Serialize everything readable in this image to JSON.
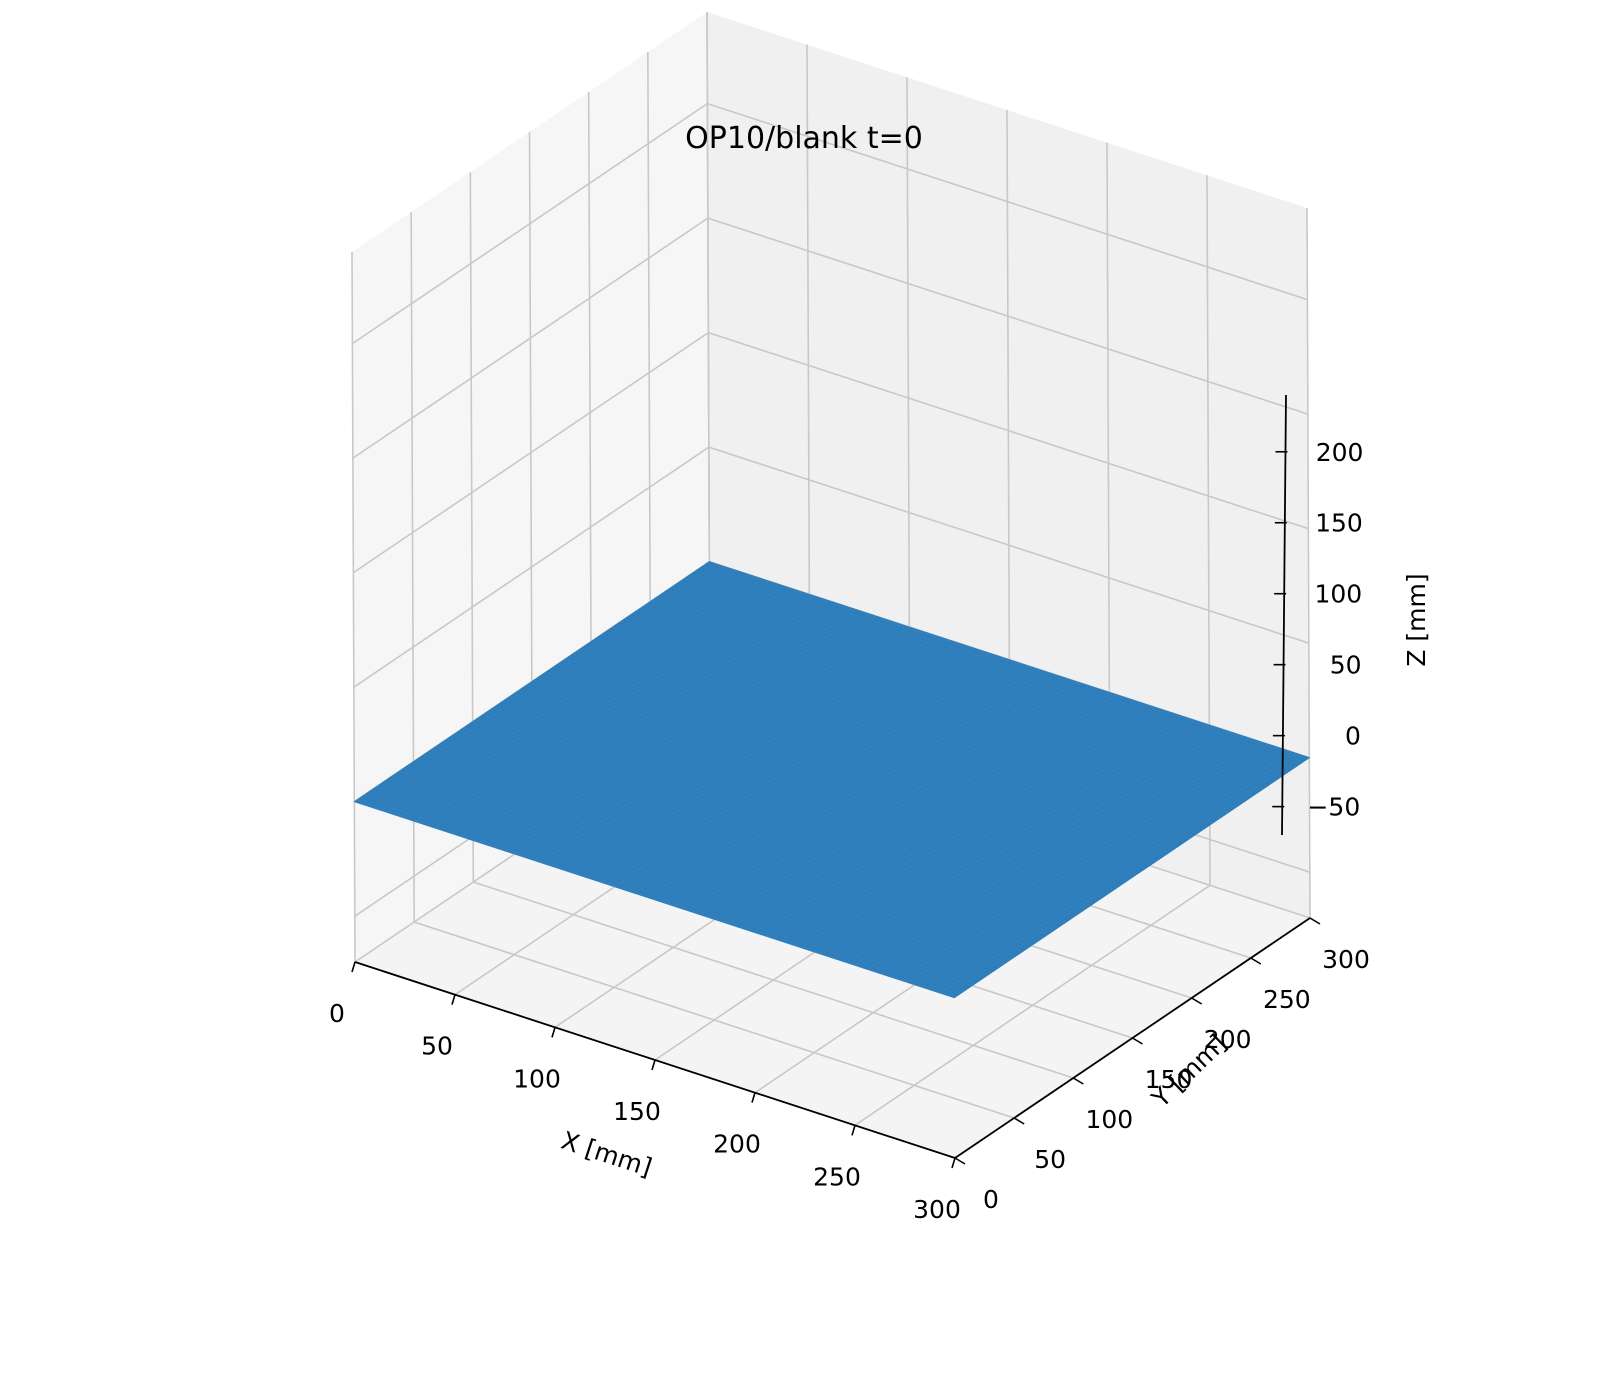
{
  "chart_data": {
    "type": "surface3d",
    "title": "OP10/blank  t=0",
    "xlabel": "X [mm]",
    "ylabel": "Y [mm]",
    "zlabel": "Z [mm]",
    "xlim": [
      0,
      300
    ],
    "ylim": [
      0,
      300
    ],
    "zlim": [
      -70,
      240
    ],
    "xticks": [
      "0",
      "50",
      "100",
      "150",
      "200",
      "250",
      "300"
    ],
    "yticks": [
      "0",
      "50",
      "100",
      "150",
      "200",
      "250",
      "300"
    ],
    "zticks": [
      "−50",
      "0",
      "50",
      "100",
      "150",
      "200"
    ],
    "grid": true,
    "surface": {
      "x_range": [
        0,
        300
      ],
      "y_range": [
        0,
        300
      ],
      "z": 0,
      "color": "#2f7fbd",
      "grid_lines": 90
    },
    "pane_colors": {
      "back": "#f0f0f0",
      "left": "#f6f6f6",
      "floor": "#f4f4f4",
      "grid": "#c8c8c8"
    }
  }
}
